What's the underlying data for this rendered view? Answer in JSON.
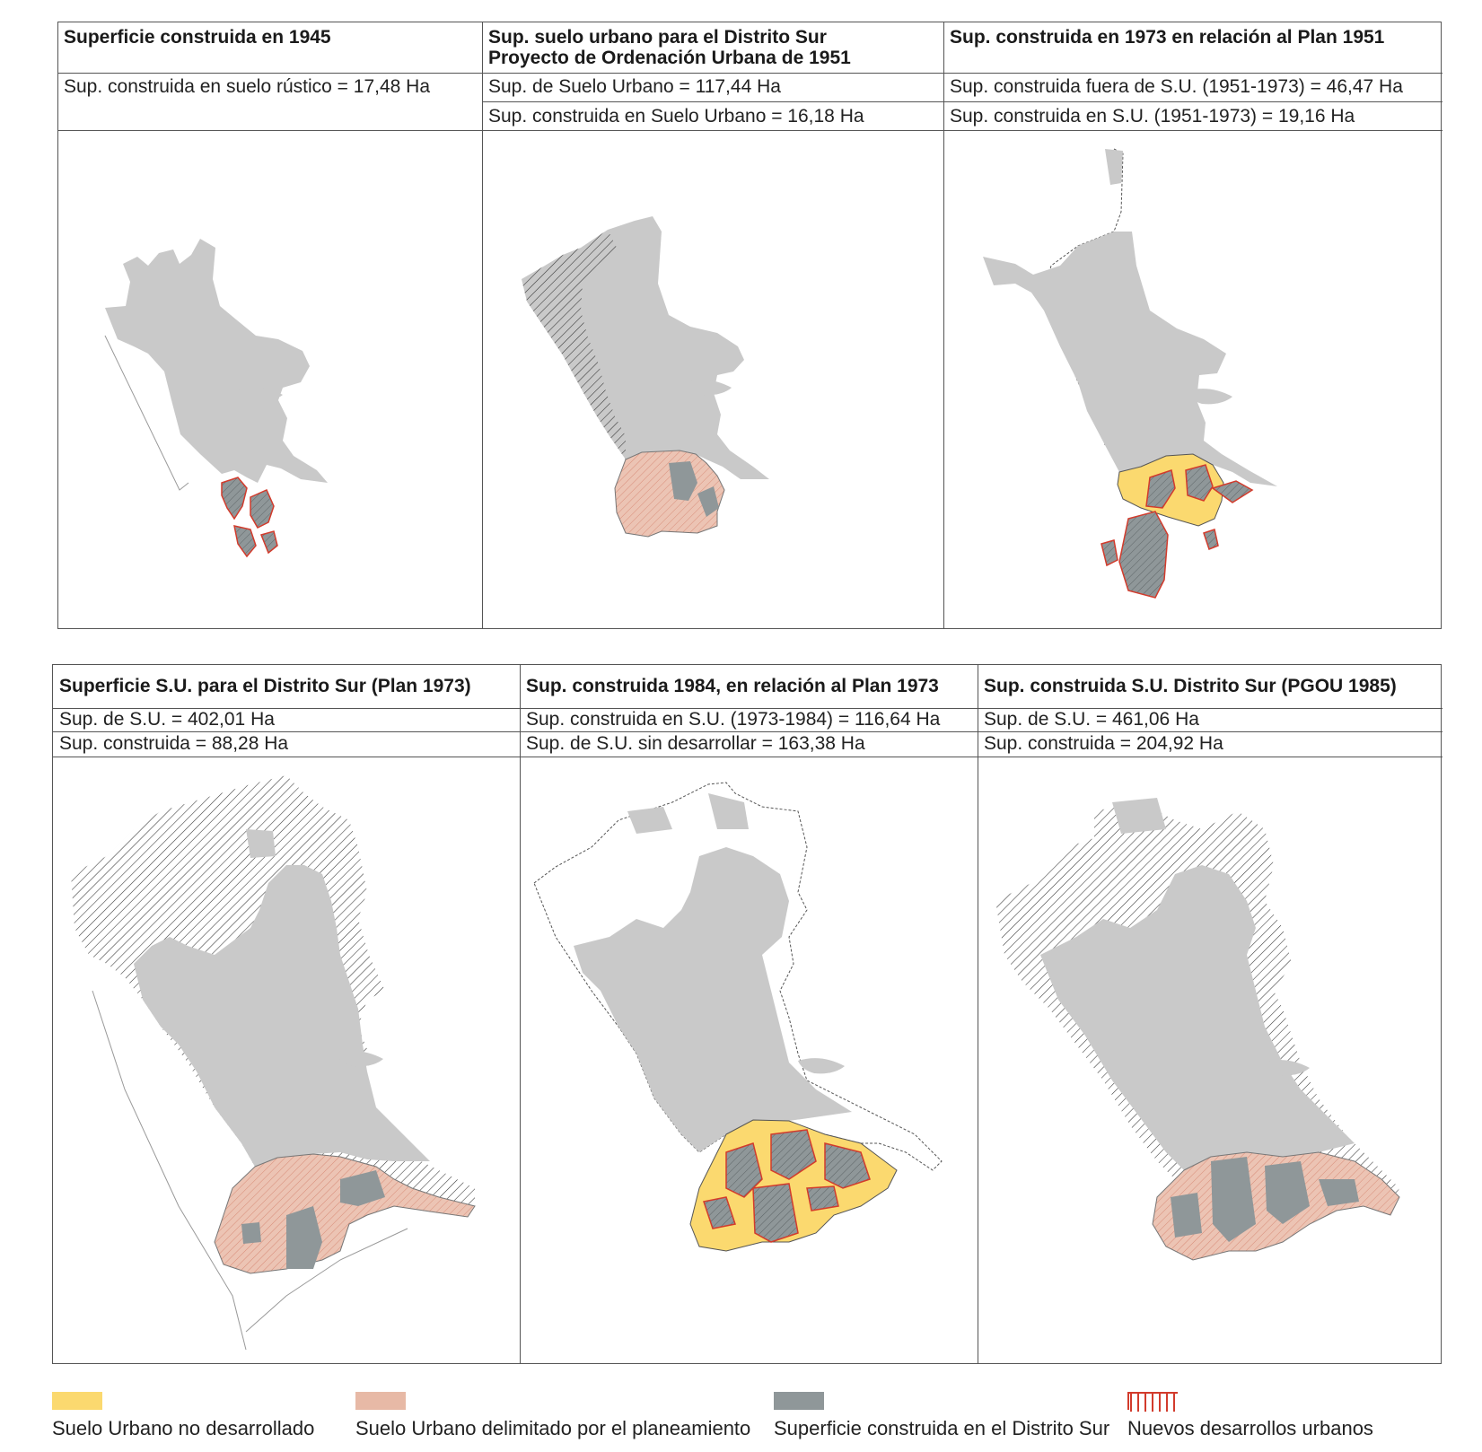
{
  "colors": {
    "built": "#c9c9c9",
    "built_district": "#8f9799",
    "unbuilt_urban": "#fbd96f",
    "delimited_urban": "#e7b9a6",
    "new_development_border": "#d23b2c"
  },
  "top_panels": [
    {
      "title": "Superficie construida en 1945",
      "rows": [
        "Sup. construida en suelo rústico = 17,48 Ha"
      ]
    },
    {
      "title": "Sup. suelo urbano para el Distrito Sur\nProyecto de Ordenación Urbana de 1951",
      "rows": [
        "Sup. de Suelo Urbano = 117,44 Ha",
        "Sup. construida en Suelo Urbano = 16,18 Ha"
      ]
    },
    {
      "title": "Sup. construida en 1973 en relación al Plan 1951",
      "rows": [
        "Sup. construida fuera de S.U. (1951-1973) = 46,47 Ha",
        "Sup. construida en S.U. (1951-1973) = 19,16 Ha"
      ]
    }
  ],
  "bottom_panels": [
    {
      "title": "Superficie S.U. para el Distrito Sur (Plan 1973)",
      "rows": [
        "Sup. de S.U. = 402,01 Ha",
        "Sup. construida = 88,28 Ha"
      ]
    },
    {
      "title": "Sup. construida 1984, en relación al Plan 1973",
      "rows": [
        "Sup. construida en S.U. (1973-1984) = 116,64 Ha",
        "Sup. de S.U. sin desarrollar = 163,38 Ha"
      ]
    },
    {
      "title": "Sup. construida S.U. Distrito Sur (PGOU 1985)",
      "rows": [
        "Sup. de S.U. = 461,06 Ha",
        "Sup. construida = 204,92 Ha"
      ]
    }
  ],
  "legend": [
    {
      "label": "Suelo Urbano no desarrollado",
      "icon": "yellow-swatch"
    },
    {
      "label": "Suelo Urbano delimitado por el planeamiento",
      "icon": "salmon-swatch"
    },
    {
      "label": "Superficie construida en el Distrito Sur",
      "icon": "dark-grey-swatch"
    },
    {
      "label": "Nuevos desarrollos urbanos",
      "icon": "red-hatched-swatch"
    }
  ]
}
